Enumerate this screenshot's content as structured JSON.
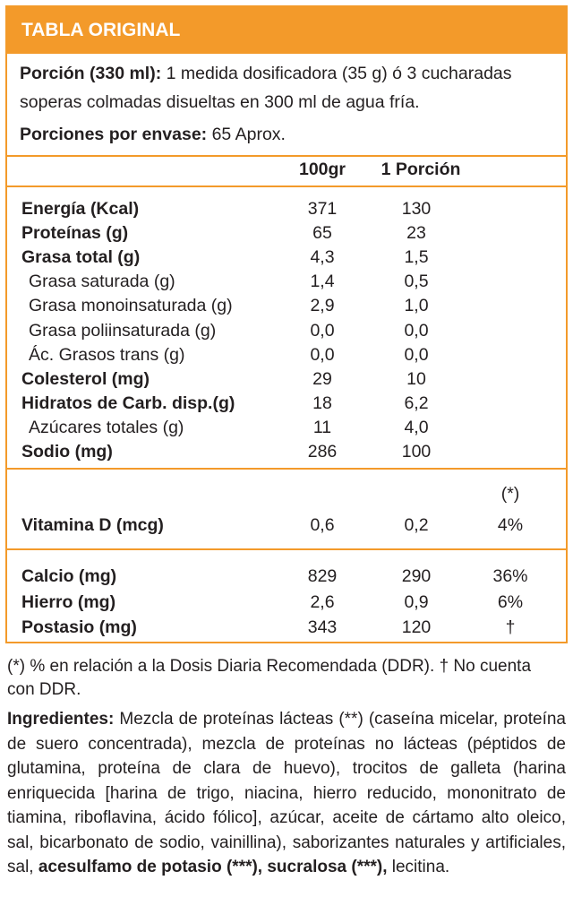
{
  "header": {
    "title": "TABLA ORIGINAL"
  },
  "serving": {
    "label": "Porción (330 ml):",
    "text_line1": " 1 medida dosificadora (35 g) ó 3 cucharadas",
    "text_line2": "soperas colmadas disueltas en 300 ml de agua fría.",
    "per_container_label": "Porciones por envase:",
    "per_container_value": " 65 Aprox."
  },
  "columns": {
    "col1": "100gr",
    "col2": "1 Porción"
  },
  "nutrients": [
    {
      "label": "Energía (Kcal)",
      "v100": "371",
      "vpor": "130",
      "bold": true
    },
    {
      "label": "Proteínas (g)",
      "v100": "65",
      "vpor": "23",
      "bold": true
    },
    {
      "label": "Grasa total (g)",
      "v100": "4,3",
      "vpor": "1,5",
      "bold": true
    },
    {
      "label": "Grasa saturada (g)",
      "v100": "1,4",
      "vpor": "0,5",
      "bold": false
    },
    {
      "label": "Grasa monoinsaturada (g)",
      "v100": "2,9",
      "vpor": "1,0",
      "bold": false
    },
    {
      "label": "Grasa poliinsaturada (g)",
      "v100": "0,0",
      "vpor": "0,0",
      "bold": false
    },
    {
      "label": "Ác. Grasos trans (g)",
      "v100": "0,0",
      "vpor": "0,0",
      "bold": false
    },
    {
      "label": "Colesterol (mg)",
      "v100": "29",
      "vpor": "10",
      "bold": true
    },
    {
      "label": "Hidratos de Carb. disp.(g)",
      "v100": "18",
      "vpor": "6,2",
      "bold": true
    },
    {
      "label": "Azúcares totales (g)",
      "v100": "11",
      "vpor": "4,0",
      "bold": false
    },
    {
      "label": "Sodio (mg)",
      "v100": "286",
      "vpor": "100",
      "bold": true
    }
  ],
  "vitamin": {
    "pct_header": "(*)",
    "label": "Vitamina D (mcg)",
    "v100": "0,6",
    "vpor": "0,2",
    "pct": "4%"
  },
  "minerals": [
    {
      "label": "Calcio (mg)",
      "v100": "829",
      "vpor": "290",
      "pct": "36%"
    },
    {
      "label": "Hierro (mg)",
      "v100": "2,6",
      "vpor": "0,9",
      "pct": "6%"
    },
    {
      "label": "Postasio (mg)",
      "v100": "343",
      "vpor": "120",
      "pct": "†"
    }
  ],
  "footnote": {
    "line1": "(*) % en relación a la Dosis Diaria Recomendada (DDR). † No cuenta",
    "line2": "con DDR."
  },
  "ingredients": {
    "label": "Ingredientes:",
    "text": " Mezcla de proteínas lácteas (**) (caseína micelar, proteína de suero concentrada), mezcla de proteínas no lácteas (péptidos de glutamina, proteína de clara de huevo), trocitos de galleta (harina enriquecida [harina de trigo, niacina, hierro reducido, mononitrato de tiamina, riboflavina, ácido fólico], azúcar, aceite de cártamo alto oleico, sal, bicarbonato de sodio, vainillina), saborizantes naturales y artificiales, sal, ",
    "bold_part": "acesulfamo de potasio (***), sucralosa (***),",
    "end": " lecitina."
  }
}
